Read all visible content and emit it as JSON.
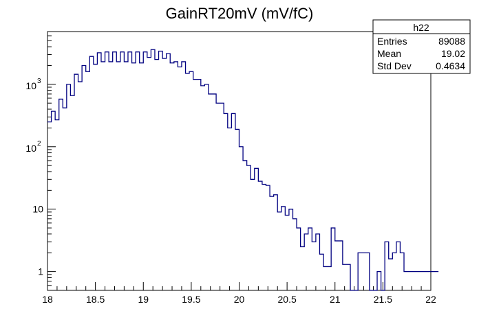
{
  "chart_data": {
    "type": "histogram",
    "title": "GainRT20mV (mV/fC)",
    "xlabel": "",
    "ylabel": "",
    "x_scale": "linear",
    "y_scale": "log",
    "xlim": [
      18,
      22
    ],
    "ylim": [
      0.5,
      7000
    ],
    "bin_width": 0.04,
    "bin_start": 18.0,
    "line_color": "#000080",
    "x_ticks": [
      "18",
      "18.5",
      "19",
      "19.5",
      "20",
      "20.5",
      "21",
      "21.5",
      "22"
    ],
    "y_ticks": [
      {
        "value": 1,
        "label": "1"
      },
      {
        "value": 10,
        "label": "10"
      },
      {
        "value": 100,
        "base": "10",
        "exp": "2"
      },
      {
        "value": 1000,
        "base": "10",
        "exp": "3"
      }
    ],
    "values": [
      250,
      370,
      270,
      580,
      420,
      1000,
      660,
      1450,
      1100,
      2000,
      1600,
      2800,
      2100,
      3200,
      2300,
      3300,
      2300,
      3300,
      2300,
      3300,
      2300,
      3300,
      2200,
      3300,
      2200,
      3300,
      2700,
      3600,
      2500,
      3400,
      2600,
      3100,
      2200,
      2300,
      1900,
      2300,
      1500,
      1600,
      1200,
      1200,
      950,
      1000,
      700,
      700,
      500,
      500,
      340,
      200,
      340,
      190,
      100,
      60,
      50,
      30,
      45,
      28,
      25,
      24,
      16,
      17,
      9,
      11,
      8,
      10,
      7,
      5,
      2.5,
      4,
      5,
      3,
      4,
      1.9,
      1.2,
      1.2,
      5,
      3.1,
      3.1,
      1.3,
      1.3,
      0.4,
      0.4,
      2,
      2,
      2,
      0.4,
      0.4,
      1,
      0.4,
      3,
      1.6,
      2,
      3,
      2,
      1,
      1,
      1,
      1,
      1,
      1,
      1,
      1,
      1
    ],
    "stats": {
      "name": "h22",
      "entries_label": "Entries",
      "entries": "89088",
      "mean_label": "Mean",
      "mean": "19.02",
      "std_label": "Std Dev",
      "std": "0.4634"
    }
  }
}
